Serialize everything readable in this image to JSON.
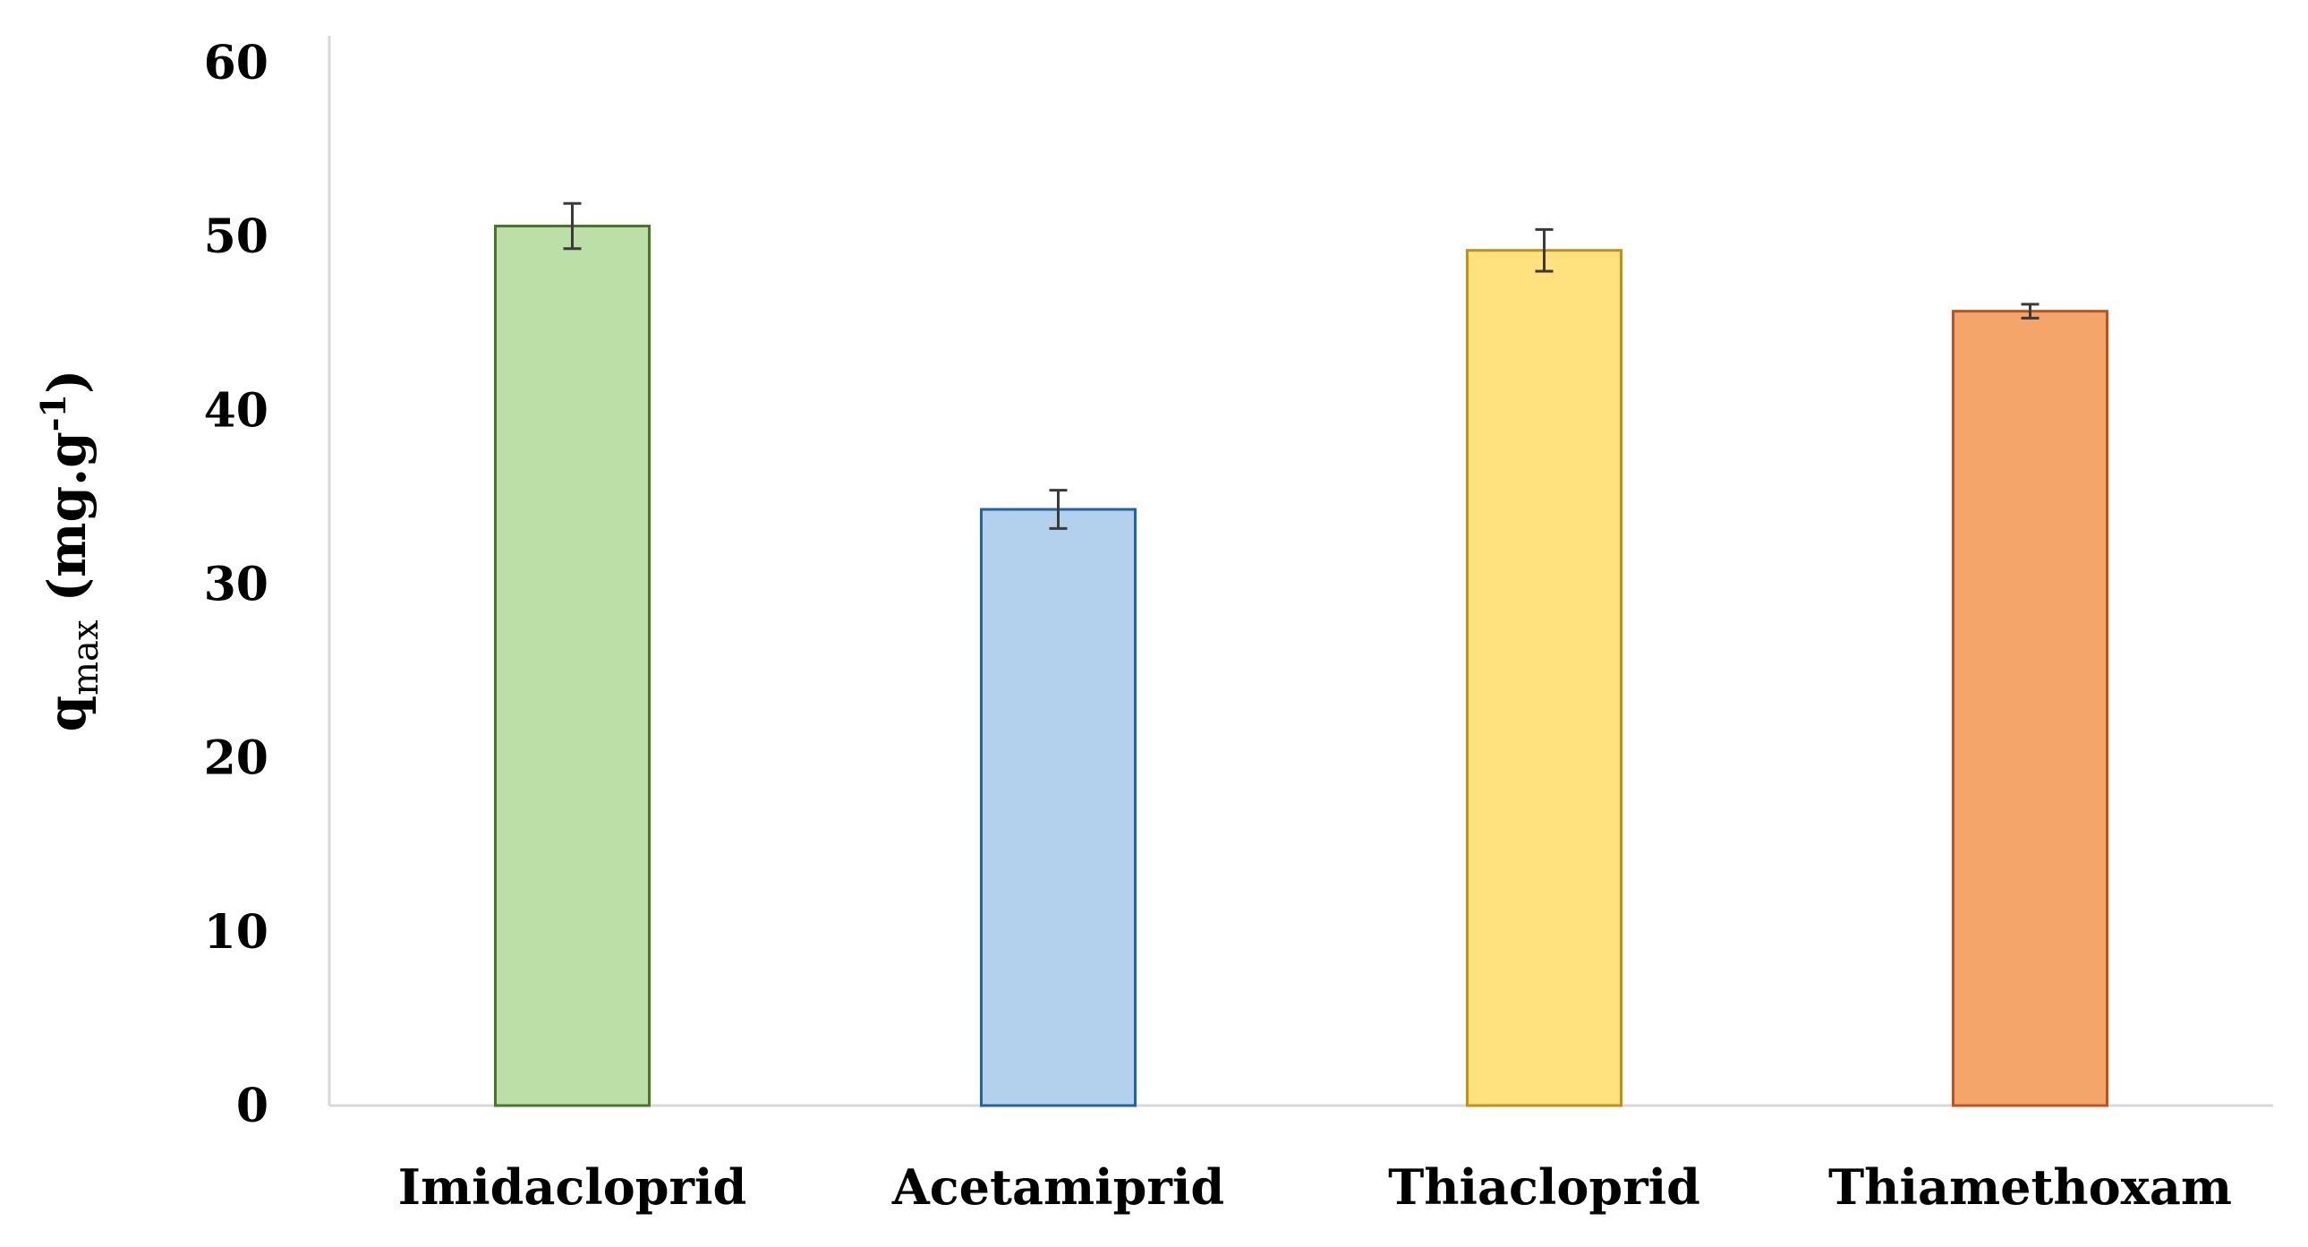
{
  "chart_data": {
    "type": "bar",
    "title": "",
    "xlabel": "",
    "ylabel": {
      "main": "q",
      "subscript": "max",
      "unit_prefix": " (mg.g",
      "unit_superscript": "-1",
      "unit_suffix": ")"
    },
    "ylim": [
      0,
      60
    ],
    "yticks": [
      "0",
      "10",
      "20",
      "30",
      "40",
      "50",
      "60"
    ],
    "categories": [
      "Imidacloprid",
      "Acetamiprid",
      "Thiacloprid",
      "Thiamethoxam"
    ],
    "values": [
      50.6,
      34.3,
      49.2,
      45.7
    ],
    "errors": [
      1.3,
      1.1,
      1.2,
      0.4
    ],
    "colors": {
      "fills": [
        "#bcdfa7",
        "#b3d1ec",
        "#ffe17e",
        "#f3a56a"
      ],
      "strokes": [
        "#48772a",
        "#2163a4",
        "#c48e17",
        "#c2501d"
      ],
      "axis": "#d9d9d9",
      "error_bar": "#3a3a3a"
    },
    "grid": false,
    "legend": "none"
  }
}
